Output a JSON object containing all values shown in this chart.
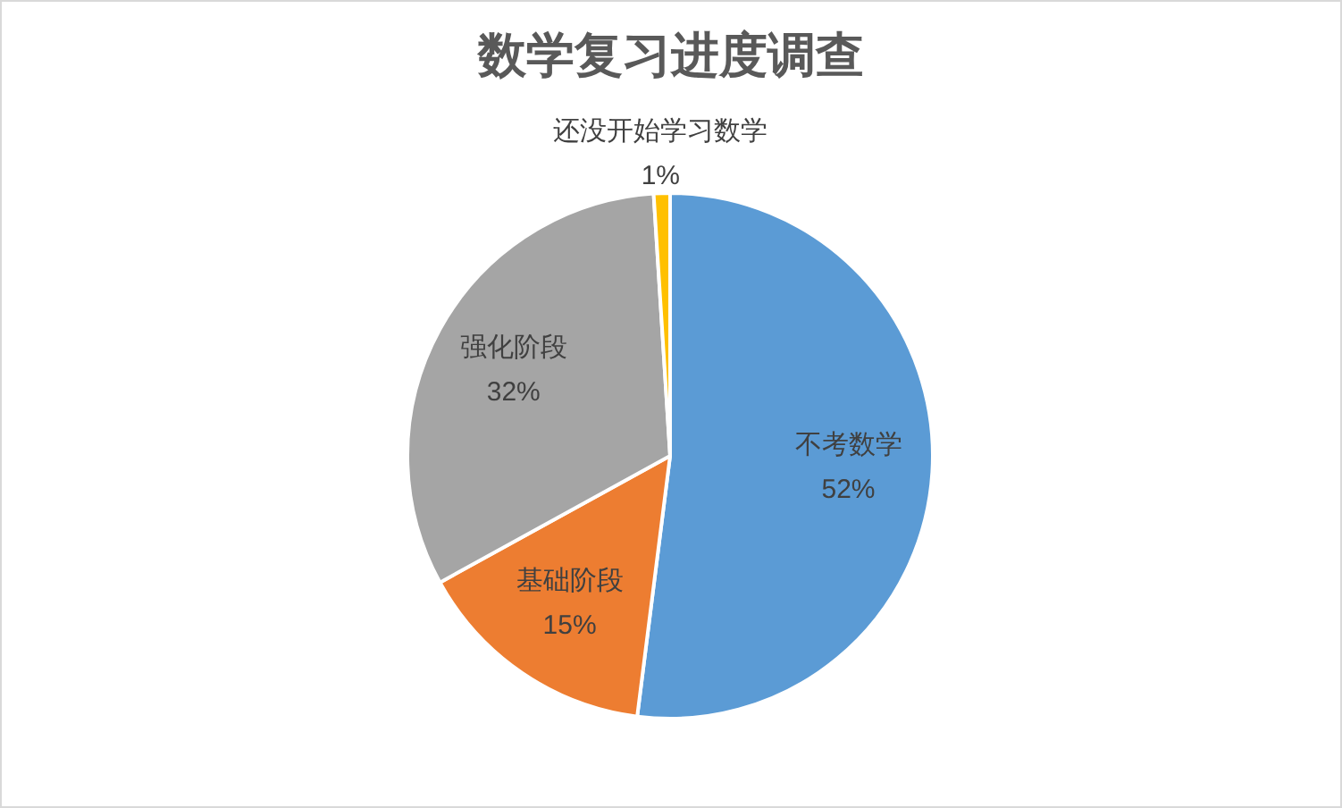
{
  "chart_data": {
    "type": "pie",
    "title": "数学复习进度调查",
    "categories": [
      "不考数学",
      "基础阶段",
      "强化阶段",
      "还没开始学习数学"
    ],
    "values": [
      52,
      15,
      32,
      1
    ],
    "value_labels": [
      "52%",
      "15%",
      "32%",
      "1%"
    ],
    "colors": [
      "#5b9bd5",
      "#ed7d31",
      "#a5a5a5",
      "#ffc000"
    ]
  }
}
